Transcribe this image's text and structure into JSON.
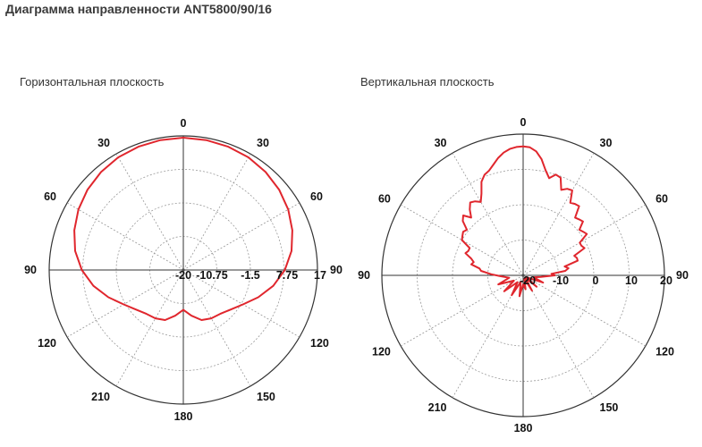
{
  "page": {
    "title": "Диаграмма направленности ANT5800/90/16"
  },
  "colors": {
    "curve": "#e0262d",
    "axis": "#333333",
    "grid": "#9a9a9a"
  },
  "chart_data": [
    {
      "type": "polar-line",
      "title": "Горизонтальная плоскость",
      "angle_labels": [
        {
          "angle": 0,
          "label": "0"
        },
        {
          "angle": 30,
          "label": "30"
        },
        {
          "angle": 60,
          "label": "60"
        },
        {
          "angle": 90,
          "label": "90"
        },
        {
          "angle": 120,
          "label": "120"
        },
        {
          "angle": 150,
          "label": "150"
        },
        {
          "angle": 180,
          "label": "180"
        },
        {
          "angle": 210,
          "label": "210"
        },
        {
          "angle": 240,
          "label": "120"
        },
        {
          "angle": 270,
          "label": "90"
        },
        {
          "angle": 300,
          "label": "60"
        },
        {
          "angle": 330,
          "label": "30"
        }
      ],
      "radial_ticks": [
        "-20",
        "-10.75",
        "-1.5",
        "7.75",
        "17"
      ],
      "rlim": [
        -20,
        17
      ],
      "grid": true,
      "series": [
        {
          "points": [
            [
              0,
              16.5
            ],
            [
              10,
              16.4
            ],
            [
              20,
              16.2
            ],
            [
              30,
              15.9
            ],
            [
              40,
              15.3
            ],
            [
              50,
              14.5
            ],
            [
              60,
              13.4
            ],
            [
              70,
              12.0
            ],
            [
              80,
              10.3
            ],
            [
              90,
              8.0
            ],
            [
              100,
              5.2
            ],
            [
              110,
              2.0
            ],
            [
              120,
              -1.0
            ],
            [
              130,
              -3.0
            ],
            [
              140,
              -4.2
            ],
            [
              150,
              -4.6
            ],
            [
              160,
              -5.3
            ],
            [
              170,
              -7.2
            ],
            [
              180,
              -9.0
            ],
            [
              190,
              -7.2
            ],
            [
              200,
              -5.3
            ],
            [
              210,
              -4.6
            ],
            [
              220,
              -4.2
            ],
            [
              230,
              -3.0
            ],
            [
              240,
              -1.0
            ],
            [
              250,
              2.0
            ],
            [
              260,
              5.2
            ],
            [
              270,
              8.0
            ],
            [
              280,
              10.3
            ],
            [
              290,
              12.0
            ],
            [
              300,
              13.4
            ],
            [
              310,
              14.5
            ],
            [
              320,
              15.3
            ],
            [
              330,
              15.9
            ],
            [
              340,
              16.2
            ],
            [
              350,
              16.4
            ]
          ]
        }
      ]
    },
    {
      "type": "polar-line",
      "title": "Вертикальная плоскость",
      "angle_labels": [
        {
          "angle": 0,
          "label": "0"
        },
        {
          "angle": 30,
          "label": "30"
        },
        {
          "angle": 60,
          "label": "60"
        },
        {
          "angle": 90,
          "label": "90"
        },
        {
          "angle": 120,
          "label": "120"
        },
        {
          "angle": 150,
          "label": "150"
        },
        {
          "angle": 180,
          "label": "180"
        },
        {
          "angle": 210,
          "label": "210"
        },
        {
          "angle": 240,
          "label": "120"
        },
        {
          "angle": 270,
          "label": "90"
        },
        {
          "angle": 300,
          "label": "60"
        },
        {
          "angle": 330,
          "label": "30"
        }
      ],
      "radial_ticks": [
        "-20",
        "-10",
        "0",
        "10",
        "20"
      ],
      "rlim": [
        -20,
        20
      ],
      "grid": true,
      "series": [
        {
          "points": [
            [
              0,
              16.5
            ],
            [
              3,
              16.3
            ],
            [
              6,
              15.3
            ],
            [
              9,
              13.3
            ],
            [
              12,
              10.5
            ],
            [
              15,
              8.5
            ],
            [
              18,
              10.0
            ],
            [
              21,
              9.6
            ],
            [
              24,
              6.5
            ],
            [
              27,
              7.5
            ],
            [
              30,
              7.8
            ],
            [
              33,
              4.5
            ],
            [
              36,
              5.0
            ],
            [
              39,
              5.2
            ],
            [
              42,
              2.0
            ],
            [
              45,
              2.4
            ],
            [
              48,
              2.8
            ],
            [
              51,
              0.5
            ],
            [
              54,
              1.0
            ],
            [
              57,
              1.5
            ],
            [
              60,
              -1.5
            ],
            [
              63,
              -1.5
            ],
            [
              66,
              -1.0
            ],
            [
              69,
              -4.5
            ],
            [
              72,
              -4.0
            ],
            [
              75,
              -4.0
            ],
            [
              78,
              -8.0
            ],
            [
              81,
              -7.0
            ],
            [
              84,
              -8.0
            ],
            [
              87,
              -12.0
            ],
            [
              90,
              -11.0
            ],
            [
              95,
              -15.0
            ],
            [
              100,
              -17.0
            ],
            [
              110,
              -14.0
            ],
            [
              120,
              -19.0
            ],
            [
              130,
              -15.0
            ],
            [
              140,
              -19.0
            ],
            [
              150,
              -15.0
            ],
            [
              160,
              -19.0
            ],
            [
              170,
              -16.0
            ],
            [
              180,
              -17.5
            ],
            [
              190,
              -14.0
            ],
            [
              200,
              -18.0
            ],
            [
              210,
              -13.5
            ],
            [
              220,
              -17.5
            ],
            [
              230,
              -13.0
            ],
            [
              240,
              -17.0
            ],
            [
              250,
              -12.5
            ],
            [
              260,
              -16.0
            ],
            [
              268,
              -13.5
            ],
            [
              272,
              -11.0
            ],
            [
              276,
              -8.0
            ],
            [
              279,
              -7.5
            ],
            [
              282,
              -5.0
            ],
            [
              285,
              -5.5
            ],
            [
              288,
              -4.5
            ],
            [
              291,
              -2.5
            ],
            [
              294,
              -3.0
            ],
            [
              297,
              -3.0
            ],
            [
              300,
              0.0
            ],
            [
              303,
              0.5
            ],
            [
              306,
              1.0
            ],
            [
              309,
              0.5
            ],
            [
              312,
              3.0
            ],
            [
              315,
              4.0
            ],
            [
              318,
              2.0
            ],
            [
              321,
              4.0
            ],
            [
              324,
              5.5
            ],
            [
              327,
              5.0
            ],
            [
              330,
              4.0
            ],
            [
              333,
              6.0
            ],
            [
              336,
              9.0
            ],
            [
              339,
              10.5
            ],
            [
              342,
              11.2
            ],
            [
              345,
              12.5
            ],
            [
              348,
              14.0
            ],
            [
              351,
              15.2
            ],
            [
              354,
              16.0
            ],
            [
              357,
              16.4
            ]
          ]
        }
      ]
    }
  ]
}
